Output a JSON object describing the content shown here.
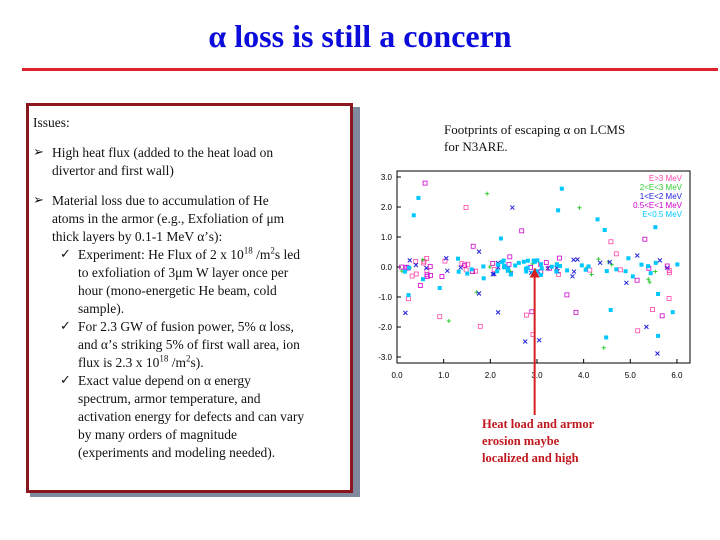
{
  "slide": {
    "title_symbol": "α",
    "title_text": " loss is still a concern"
  },
  "issues": {
    "heading": "Issues:",
    "bullet1": [
      "High heat flux (added to the heat load on",
      "divertor and first wall)"
    ],
    "bullet2": [
      "Material loss due to accumulation of He",
      "atoms in the armor (e.g., Exfoliation of μm",
      "thick layers by 0.1-1 MeV α’s):"
    ],
    "check1": {
      "l1_a": "Experiment: He Flux of 2 x 10",
      "l1_sup1": "18",
      "l1_b": " /m",
      "l1_sup2": "2",
      "l1_c": "s led",
      "l2": "to exfoliation of 3μm W layer once per",
      "l3": "hour (mono-energetic He beam, cold",
      "l4": "sample)."
    },
    "check2": {
      "l1": "For 2.3 GW of fusion power, 5% α loss,",
      "l2": "and α’s striking 5% of first wall area, ion",
      "l3_a": "flux is 2.3 x 10",
      "l3_sup1": "18",
      "l3_b": " /m",
      "l3_sup2": "2",
      "l3_c": "s)."
    },
    "check3": [
      "Exact value depend on α energy",
      "spectrum, armor temperature, and",
      "activation energy for defects and can vary",
      "by many orders of magnitude",
      "(experiments and modeling needed)."
    ]
  },
  "figure": {
    "caption": [
      "Footprints of escaping α on LCMS",
      "for N3ARE."
    ],
    "callout": [
      "Heat load and armor",
      "erosion  maybe",
      "localized and high"
    ]
  },
  "chart_data": {
    "type": "scatter",
    "x_ticks": [
      "0.0",
      "1.0",
      "2.0",
      "3.0",
      "4.0",
      "5.0",
      "6.0"
    ],
    "y_ticks": [
      "3.0",
      "2.0",
      "1.0",
      "0.0",
      "-1.0",
      "-2.0",
      "-3.0"
    ],
    "xlim": [
      0,
      6.28
    ],
    "ylim": [
      -3.2,
      3.2
    ],
    "series": [
      {
        "name": "E>3 MeV",
        "color": "#ff44aa"
      },
      {
        "name": "2<E<3 MeV",
        "color": "#33cc33"
      },
      {
        "name": "1<E<2 MeV",
        "color": "#2222dd"
      },
      {
        "name": "0.5<E<1 MeV",
        "color": "#cc00cc"
      },
      {
        "name": "E<0.5 MeV",
        "color": "#00c8ff"
      }
    ],
    "arrow_color": "#d62020"
  }
}
